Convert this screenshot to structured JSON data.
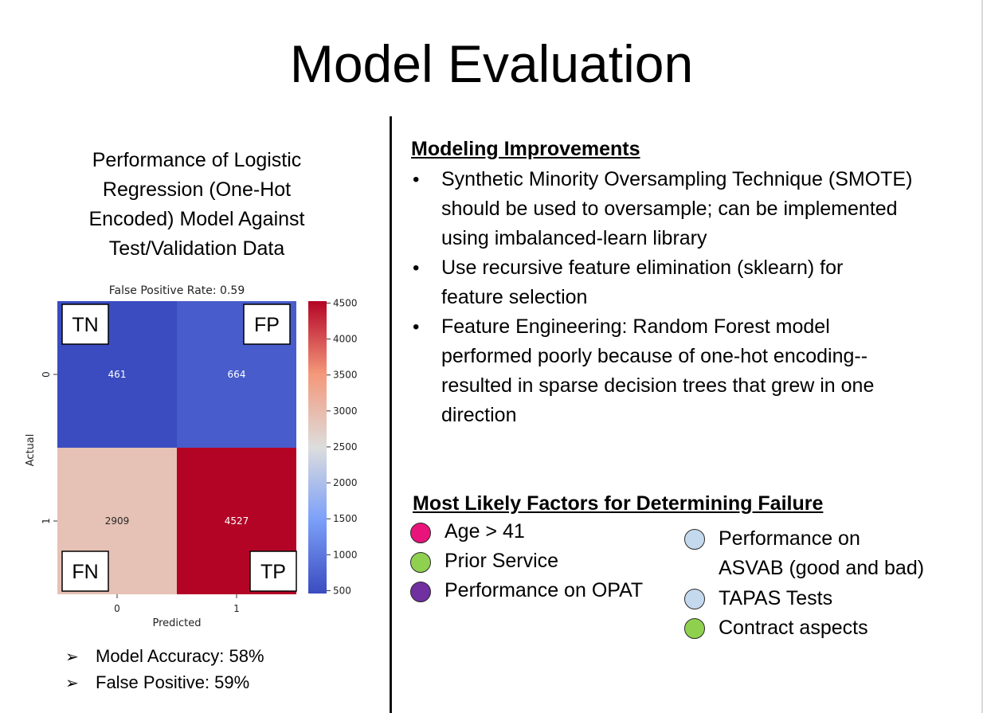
{
  "title": "Model Evaluation",
  "left": {
    "caption_lines": [
      "Performance of Logistic",
      "Regression (One-Hot",
      "Encoded) Model Against",
      "Test/Validation Data"
    ],
    "metrics": [
      {
        "arrow": "➢",
        "text": "Model Accuracy: 58%"
      },
      {
        "arrow": "➢",
        "text": "False Positive: 59%"
      }
    ]
  },
  "chart_data": {
    "type": "heatmap",
    "title": "False Positive Rate: 0.59",
    "xlabel": "Predicted",
    "ylabel": "Actual",
    "x_categories": [
      "0",
      "1"
    ],
    "y_categories": [
      "0",
      "1"
    ],
    "values": [
      [
        461,
        664
      ],
      [
        2909,
        4527
      ]
    ],
    "cell_labels": [
      [
        "TN",
        "FP"
      ],
      [
        "FN",
        "TP"
      ]
    ],
    "colormap": "coolwarm",
    "colorbar": {
      "min": 461,
      "max": 4527,
      "ticks": [
        500,
        1000,
        1500,
        2000,
        2500,
        3000,
        3500,
        4000,
        4500
      ]
    }
  },
  "right": {
    "improvements_heading": "Modeling Improvements",
    "improvements": [
      [
        "Synthetic Minority Oversampling Technique (SMOTE)",
        "should be used to oversample; can be implemented",
        "using imbalanced-learn library"
      ],
      [
        "Use recursive feature elimination (sklearn) for",
        "feature selection"
      ],
      [
        "Feature Engineering: Random Forest model",
        "performed poorly because of one-hot encoding--",
        "resulted in sparse decision trees that grew in one",
        "direction"
      ]
    ],
    "factors_heading": "Most Likely Factors for Determining Failure",
    "factors_left": [
      {
        "label": "Age > 41",
        "color": "#e8137b"
      },
      {
        "label": "Prior Service",
        "color": "#8fd14f"
      },
      {
        "label": "Performance on OPAT",
        "color": "#7030a0"
      }
    ],
    "factors_right": [
      {
        "lines": [
          "Performance on",
          "ASVAB (good and bad)"
        ],
        "color": "#c5d9ee"
      },
      {
        "lines": [
          "TAPAS Tests"
        ],
        "color": "#c5d9ee"
      },
      {
        "lines": [
          "Contract aspects"
        ],
        "color": "#8fd14f"
      }
    ]
  }
}
